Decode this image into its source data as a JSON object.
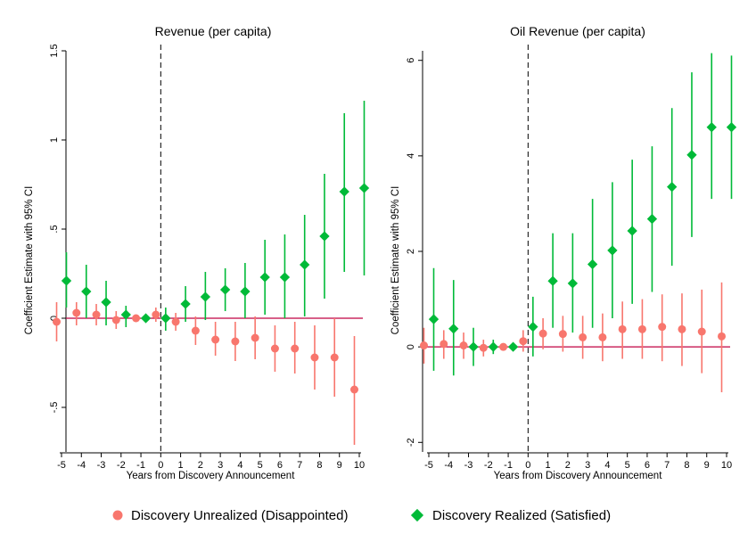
{
  "chart_data": [
    {
      "type": "scatter",
      "title": "Revenue (per capita)",
      "xlabel": "Years from Discovery Announcement",
      "ylabel": "Coefficient Estimate with 95% CI",
      "x": [
        -5,
        -4,
        -3,
        -2,
        -1,
        0,
        1,
        2,
        3,
        4,
        5,
        6,
        7,
        8,
        9,
        10
      ],
      "xtick_labels": [
        "-5",
        "-4",
        "-3",
        "-2",
        "-1",
        "0",
        "1",
        "2",
        "3",
        "4",
        "5",
        "6",
        "7",
        "8",
        "9",
        "10"
      ],
      "ylim": [
        -0.75,
        1.5
      ],
      "ytick_labels": [
        "-.5",
        "0",
        ".5",
        "1",
        "1.5"
      ],
      "yticks": [
        -0.5,
        0,
        0.5,
        1,
        1.5
      ],
      "reference_line_y": 0,
      "event_line_x": 0,
      "series": [
        {
          "name": "Discovery Unrealized (Disappointed)",
          "marker": "circle",
          "color": "#F8766D",
          "values": [
            -0.02,
            0.03,
            0.02,
            -0.01,
            0.0,
            0.02,
            -0.02,
            -0.07,
            -0.12,
            -0.13,
            -0.11,
            -0.17,
            -0.17,
            -0.22,
            -0.22,
            -0.4
          ],
          "ci_low": [
            -0.13,
            -0.04,
            -0.04,
            -0.06,
            null,
            -0.02,
            -0.07,
            -0.15,
            -0.21,
            -0.24,
            -0.23,
            -0.3,
            -0.31,
            -0.4,
            -0.44,
            -0.71
          ],
          "ci_high": [
            0.09,
            0.09,
            0.08,
            0.04,
            null,
            0.06,
            0.03,
            0.01,
            -0.02,
            -0.02,
            0.01,
            -0.04,
            -0.02,
            -0.04,
            0.0,
            -0.1
          ]
        },
        {
          "name": "Discovery Realized (Satisfied)",
          "marker": "diamond",
          "color": "#00BA38",
          "values": [
            0.21,
            0.15,
            0.09,
            0.02,
            0.0,
            0.0,
            0.08,
            0.12,
            0.16,
            0.15,
            0.23,
            0.23,
            0.3,
            0.46,
            0.71,
            0.73
          ],
          "ci_low": [
            0.06,
            0.0,
            -0.04,
            -0.05,
            null,
            -0.07,
            -0.02,
            -0.01,
            0.04,
            0.0,
            0.02,
            0.0,
            0.01,
            0.11,
            0.26,
            0.24
          ],
          "ci_high": [
            0.37,
            0.3,
            0.21,
            0.07,
            null,
            0.06,
            0.18,
            0.26,
            0.28,
            0.31,
            0.44,
            0.47,
            0.58,
            0.81,
            1.15,
            1.22
          ]
        }
      ]
    },
    {
      "type": "scatter",
      "title": "Oil Revenue (per capita)",
      "xlabel": "Years from Discovery Announcement",
      "ylabel": "Coefficient Estimate with 95% CI",
      "x": [
        -5,
        -4,
        -3,
        -2,
        -1,
        0,
        1,
        2,
        3,
        4,
        5,
        6,
        7,
        8,
        9,
        10
      ],
      "xtick_labels": [
        "-5",
        "-4",
        "-3",
        "-2",
        "-1",
        "0",
        "1",
        "2",
        "3",
        "4",
        "5",
        "6",
        "7",
        "8",
        "9",
        "10"
      ],
      "ylim": [
        -2.2,
        6.2
      ],
      "ytick_labels": [
        "-2",
        "0",
        "2",
        "4",
        "6"
      ],
      "yticks": [
        -2,
        0,
        2,
        4,
        6
      ],
      "reference_line_y": 0,
      "event_line_x": 0,
      "series": [
        {
          "name": "Discovery Unrealized (Disappointed)",
          "marker": "circle",
          "color": "#F8766D",
          "values": [
            0.03,
            0.06,
            0.03,
            -0.02,
            0.0,
            0.12,
            0.28,
            0.27,
            0.2,
            0.2,
            0.37,
            0.37,
            0.42,
            0.37,
            0.32,
            0.22
          ],
          "ci_low": [
            -0.35,
            -0.25,
            -0.25,
            -0.2,
            null,
            -0.1,
            -0.05,
            -0.1,
            -0.25,
            -0.3,
            -0.25,
            -0.25,
            -0.3,
            -0.4,
            -0.55,
            -0.95
          ],
          "ci_high": [
            0.4,
            0.35,
            0.3,
            0.15,
            null,
            0.35,
            0.6,
            0.65,
            0.65,
            0.7,
            0.95,
            1.0,
            1.1,
            1.12,
            1.2,
            1.35
          ]
        },
        {
          "name": "Discovery Realized (Satisfied)",
          "marker": "diamond",
          "color": "#00BA38",
          "values": [
            0.58,
            0.38,
            0.0,
            0.0,
            0.0,
            0.42,
            1.38,
            1.33,
            1.73,
            2.02,
            2.43,
            2.68,
            3.35,
            4.02,
            4.6,
            4.6
          ],
          "ci_low": [
            -0.5,
            -0.6,
            -0.4,
            -0.15,
            null,
            -0.2,
            0.4,
            0.3,
            0.4,
            0.6,
            0.9,
            1.15,
            1.7,
            2.3,
            3.1,
            3.1
          ],
          "ci_high": [
            1.65,
            1.4,
            0.4,
            0.15,
            null,
            1.05,
            2.38,
            2.38,
            3.1,
            3.45,
            3.92,
            4.2,
            5.0,
            5.75,
            6.15,
            6.1
          ]
        }
      ]
    }
  ],
  "legend": {
    "items": [
      {
        "label": "Discovery Unrealized (Disappointed)",
        "marker": "circle",
        "color": "#F8766D"
      },
      {
        "label": "Discovery Realized (Satisfied)",
        "marker": "diamond",
        "color": "#00BA38"
      }
    ]
  },
  "colors": {
    "zero_line": "#C00040",
    "event_line": "#000000"
  }
}
